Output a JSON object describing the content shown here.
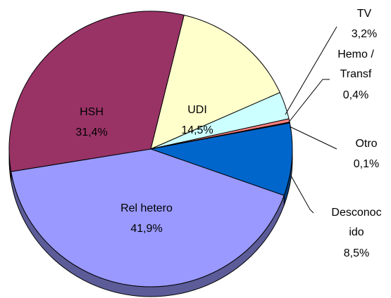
{
  "chart_data": {
    "type": "pie",
    "categories": [
      "UDI",
      "TV",
      "Hemo /\nTransf",
      "Otro",
      "Desconoc\nido",
      "Rel hetero",
      "HSH"
    ],
    "values": [
      14.5,
      3.2,
      0.4,
      0.1,
      8.5,
      41.9,
      31.4
    ],
    "value_labels": [
      "14,5%",
      "3,2%",
      "0,4%",
      "0,1%",
      "8,5%",
      "41,9%",
      "31,4%"
    ],
    "colors": [
      "#ffffcc",
      "#ccffff",
      "#ff8080",
      "#660066",
      "#0066cc",
      "#9999ff",
      "#993366"
    ]
  }
}
